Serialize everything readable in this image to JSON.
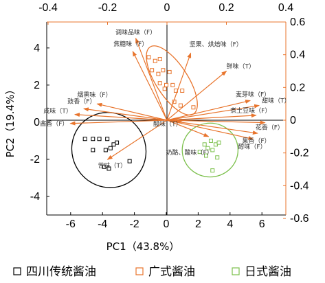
{
  "chart_data": {
    "type": "scatter",
    "title": "",
    "xlabel": "PC1（43.8%）",
    "ylabel": "PC2（19.4%）",
    "xlim": [
      -7.5,
      7.5
    ],
    "ylim": [
      -5,
      5.4
    ],
    "x_ticks": [
      -6,
      -4,
      -2,
      0,
      2,
      4,
      6
    ],
    "y_ticks": [
      -4,
      -2,
      0,
      2,
      4
    ],
    "loading_axis": {
      "top_ticks": [
        "-0.4",
        "-0.2",
        "0",
        "0.2",
        "0.4"
      ],
      "right_ticks": [
        "0.6",
        "0.4",
        "0.2",
        "0",
        "-0.2",
        "-0.4",
        "-0.6"
      ],
      "xlim": [
        -0.4,
        0.4
      ],
      "ylim": [
        -0.6,
        0.6
      ],
      "color": "#e8742c"
    },
    "colors": {
      "sichuan": "#000000",
      "guangshi": "#e8742c",
      "rishi": "#7cc04c",
      "loading": "#e8742c"
    },
    "series": [
      {
        "name": "四川传统酱油",
        "color": "#000000",
        "points": [
          [
            -5.1,
            -0.9
          ],
          [
            -4.6,
            -0.9
          ],
          [
            -4.2,
            -0.9
          ],
          [
            -3.7,
            -0.9
          ],
          [
            -3.1,
            -1.1
          ],
          [
            -3.3,
            -1.2
          ],
          [
            -3.5,
            -1.4
          ],
          [
            -2.3,
            -2.1
          ],
          [
            -3.8,
            -1.5
          ],
          [
            -4.6,
            -1.5
          ],
          [
            -3.9,
            -2.4
          ],
          [
            -3.6,
            -2.5
          ]
        ]
      },
      {
        "name": "广式酱油",
        "color": "#e8742c",
        "points": [
          [
            -1.1,
            3.5
          ],
          [
            -0.7,
            3.3
          ],
          [
            -0.4,
            3.4
          ],
          [
            -0.9,
            2.8
          ],
          [
            -0.5,
            2.6
          ],
          [
            -0.2,
            2.8
          ],
          [
            0.2,
            2.7
          ],
          [
            -0.4,
            2.1
          ],
          [
            0.0,
            2.0
          ],
          [
            0.4,
            2.0
          ],
          [
            -0.1,
            1.8
          ],
          [
            0.6,
            1.7
          ],
          [
            1.0,
            1.7
          ],
          [
            0.5,
            1.1
          ],
          [
            0.9,
            0.9
          ],
          [
            1.7,
            0.8
          ]
        ]
      },
      {
        "name": "日式酱油",
        "color": "#7cc04c",
        "points": [
          [
            2.8,
            -1.0
          ],
          [
            3.1,
            -1.2
          ],
          [
            3.3,
            -1.1
          ],
          [
            2.4,
            -1.2
          ],
          [
            2.6,
            -1.4
          ],
          [
            2.9,
            -1.5
          ],
          [
            2.1,
            -1.6
          ],
          [
            2.5,
            -1.8
          ],
          [
            3.2,
            -1.9
          ],
          [
            2.9,
            -2.6
          ]
        ]
      }
    ],
    "loadings": [
      {
        "label": "调味品味（F）",
        "x": -0.105,
        "y": 0.5
      },
      {
        "label": "焦糖味（F）",
        "x": -0.115,
        "y": 0.42
      },
      {
        "label": "坚果、烘焙味（F）",
        "x": 0.08,
        "y": 0.41
      },
      {
        "label": "鲜味（T）",
        "x": 0.2,
        "y": 0.3
      },
      {
        "label": "烟熏味（F）",
        "x": -0.235,
        "y": 0.1
      },
      {
        "label": "豉香（F）",
        "x": -0.28,
        "y": 0.07
      },
      {
        "label": "咸味（T）",
        "x": -0.31,
        "y": 0.035
      },
      {
        "label": "酱香（F）",
        "x": -0.325,
        "y": -0.02
      },
      {
        "label": "苦味（T）",
        "x": -0.2,
        "y": -0.24
      },
      {
        "label": "酸味（T）",
        "x": 0.05,
        "y": -0.01
      },
      {
        "label": "麦芽味（F）",
        "x": 0.28,
        "y": 0.12
      },
      {
        "label": "甜味（T）",
        "x": 0.31,
        "y": 0.09
      },
      {
        "label": "煮土豆味（F）",
        "x": 0.3,
        "y": 0.03
      },
      {
        "label": "花香（F）",
        "x": 0.33,
        "y": -0.015
      },
      {
        "label": "果香（F）",
        "x": 0.305,
        "y": -0.08
      },
      {
        "label": "醇味（F）",
        "x": 0.29,
        "y": -0.115
      },
      {
        "label": "奶酪、酸味（F）",
        "x": 0.14,
        "y": -0.1
      }
    ],
    "legend_position": "bottom"
  }
}
